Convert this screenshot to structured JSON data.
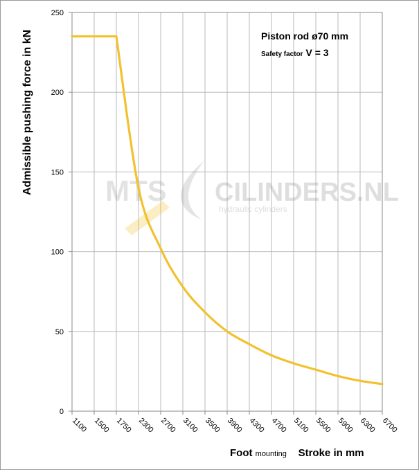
{
  "chart_data": {
    "type": "line",
    "categories": [
      "1100",
      "1500",
      "1750",
      "2300",
      "2700",
      "3100",
      "3500",
      "3900",
      "4300",
      "4700",
      "5100",
      "5500",
      "5900",
      "6300",
      "6700"
    ],
    "series": [
      {
        "values": [
          235,
          235,
          235,
          140,
          102,
          78,
          62,
          50,
          42,
          35,
          30,
          26,
          22,
          19,
          17
        ]
      }
    ],
    "ylabel": "Admissible  pushing  force in kN",
    "xlabel_main": "Foot",
    "xlabel_sub": "mounting",
    "xlabel_tail": "Stroke in mm",
    "ylim": [
      0,
      250
    ],
    "yticks": [
      "0",
      "50",
      "100",
      "150",
      "200",
      "250"
    ],
    "grid": true,
    "line_color": "#f2c12e",
    "annotation": {
      "line1": "Piston rod ø70 mm",
      "line2_prefix": "Safety factor",
      "line2_value": "V = 3"
    },
    "watermark": {
      "brand": "MTS",
      "name": "CILINDERS.NL",
      "tagline": "hydraulic   cylinders"
    }
  }
}
